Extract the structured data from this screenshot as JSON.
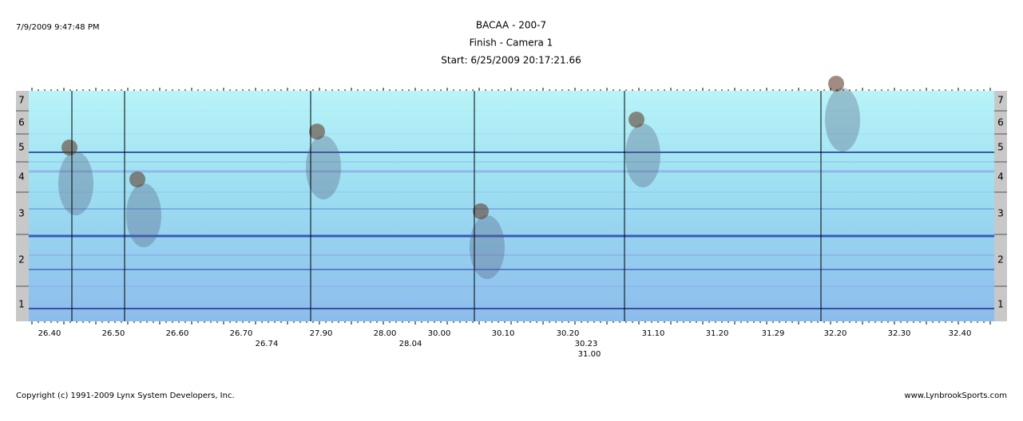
{
  "header": {
    "timestamp": "7/9/2009 9:47:48 PM",
    "title": "BACAA - 200-7",
    "subtitle": "Finish - Camera 1",
    "start": "Start: 6/25/2009 20:17:21.66"
  },
  "lanes": [
    "1",
    "2",
    "3",
    "4",
    "5",
    "6",
    "7"
  ],
  "time_scale": [
    "26.40",
    "26.50",
    "26.60",
    "26.70",
    "27.90",
    "28.00",
    "30.00",
    "30.10",
    "30.20",
    "31.10",
    "31.20",
    "31.29",
    "32.20",
    "32.30",
    "32.40"
  ],
  "finish_times": [
    "26.74",
    "28.04",
    "30.23",
    "31.00"
  ],
  "footer": {
    "copyright": "Copyright (c) 1991-2009 Lynx System Developers, Inc.",
    "website": "www.LynbrookSports.com"
  }
}
